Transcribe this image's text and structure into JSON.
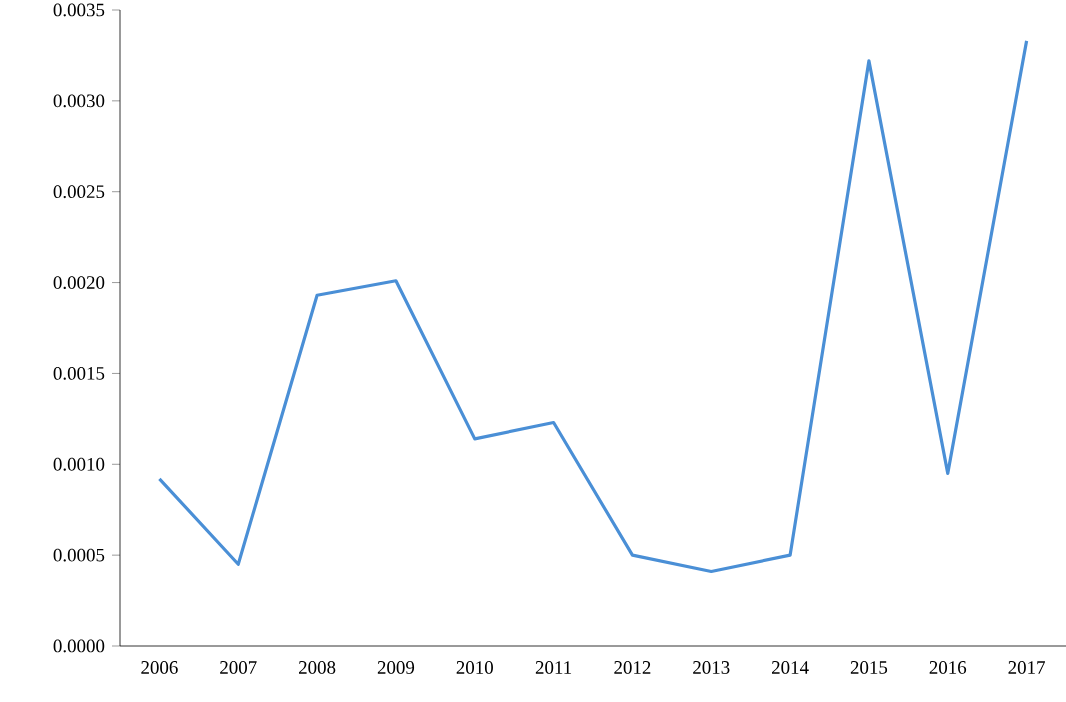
{
  "chart_data": {
    "type": "line",
    "categories": [
      "2006",
      "2007",
      "2008",
      "2009",
      "2010",
      "2011",
      "2012",
      "2013",
      "2014",
      "2015",
      "2016",
      "2017"
    ],
    "values": [
      0.00092,
      0.00045,
      0.00193,
      0.00201,
      0.00114,
      0.00123,
      0.0005,
      0.00041,
      0.0005,
      0.00322,
      0.00095,
      0.00333
    ],
    "color": "#4a8fd6",
    "ylim": [
      0,
      0.0035
    ],
    "yticks": [
      {
        "value": 0,
        "label": "0.0000"
      },
      {
        "value": 0.0005,
        "label": "0.0005"
      },
      {
        "value": 0.001,
        "label": "0.0010"
      },
      {
        "value": 0.0015,
        "label": "0.0015"
      },
      {
        "value": 0.002,
        "label": "0.0020"
      },
      {
        "value": 0.0025,
        "label": "0.0025"
      },
      {
        "value": 0.003,
        "label": "0.0030"
      },
      {
        "value": 0.0035,
        "label": "0.0035"
      }
    ],
    "grid": false,
    "marker": "none",
    "line_style": "solid"
  }
}
